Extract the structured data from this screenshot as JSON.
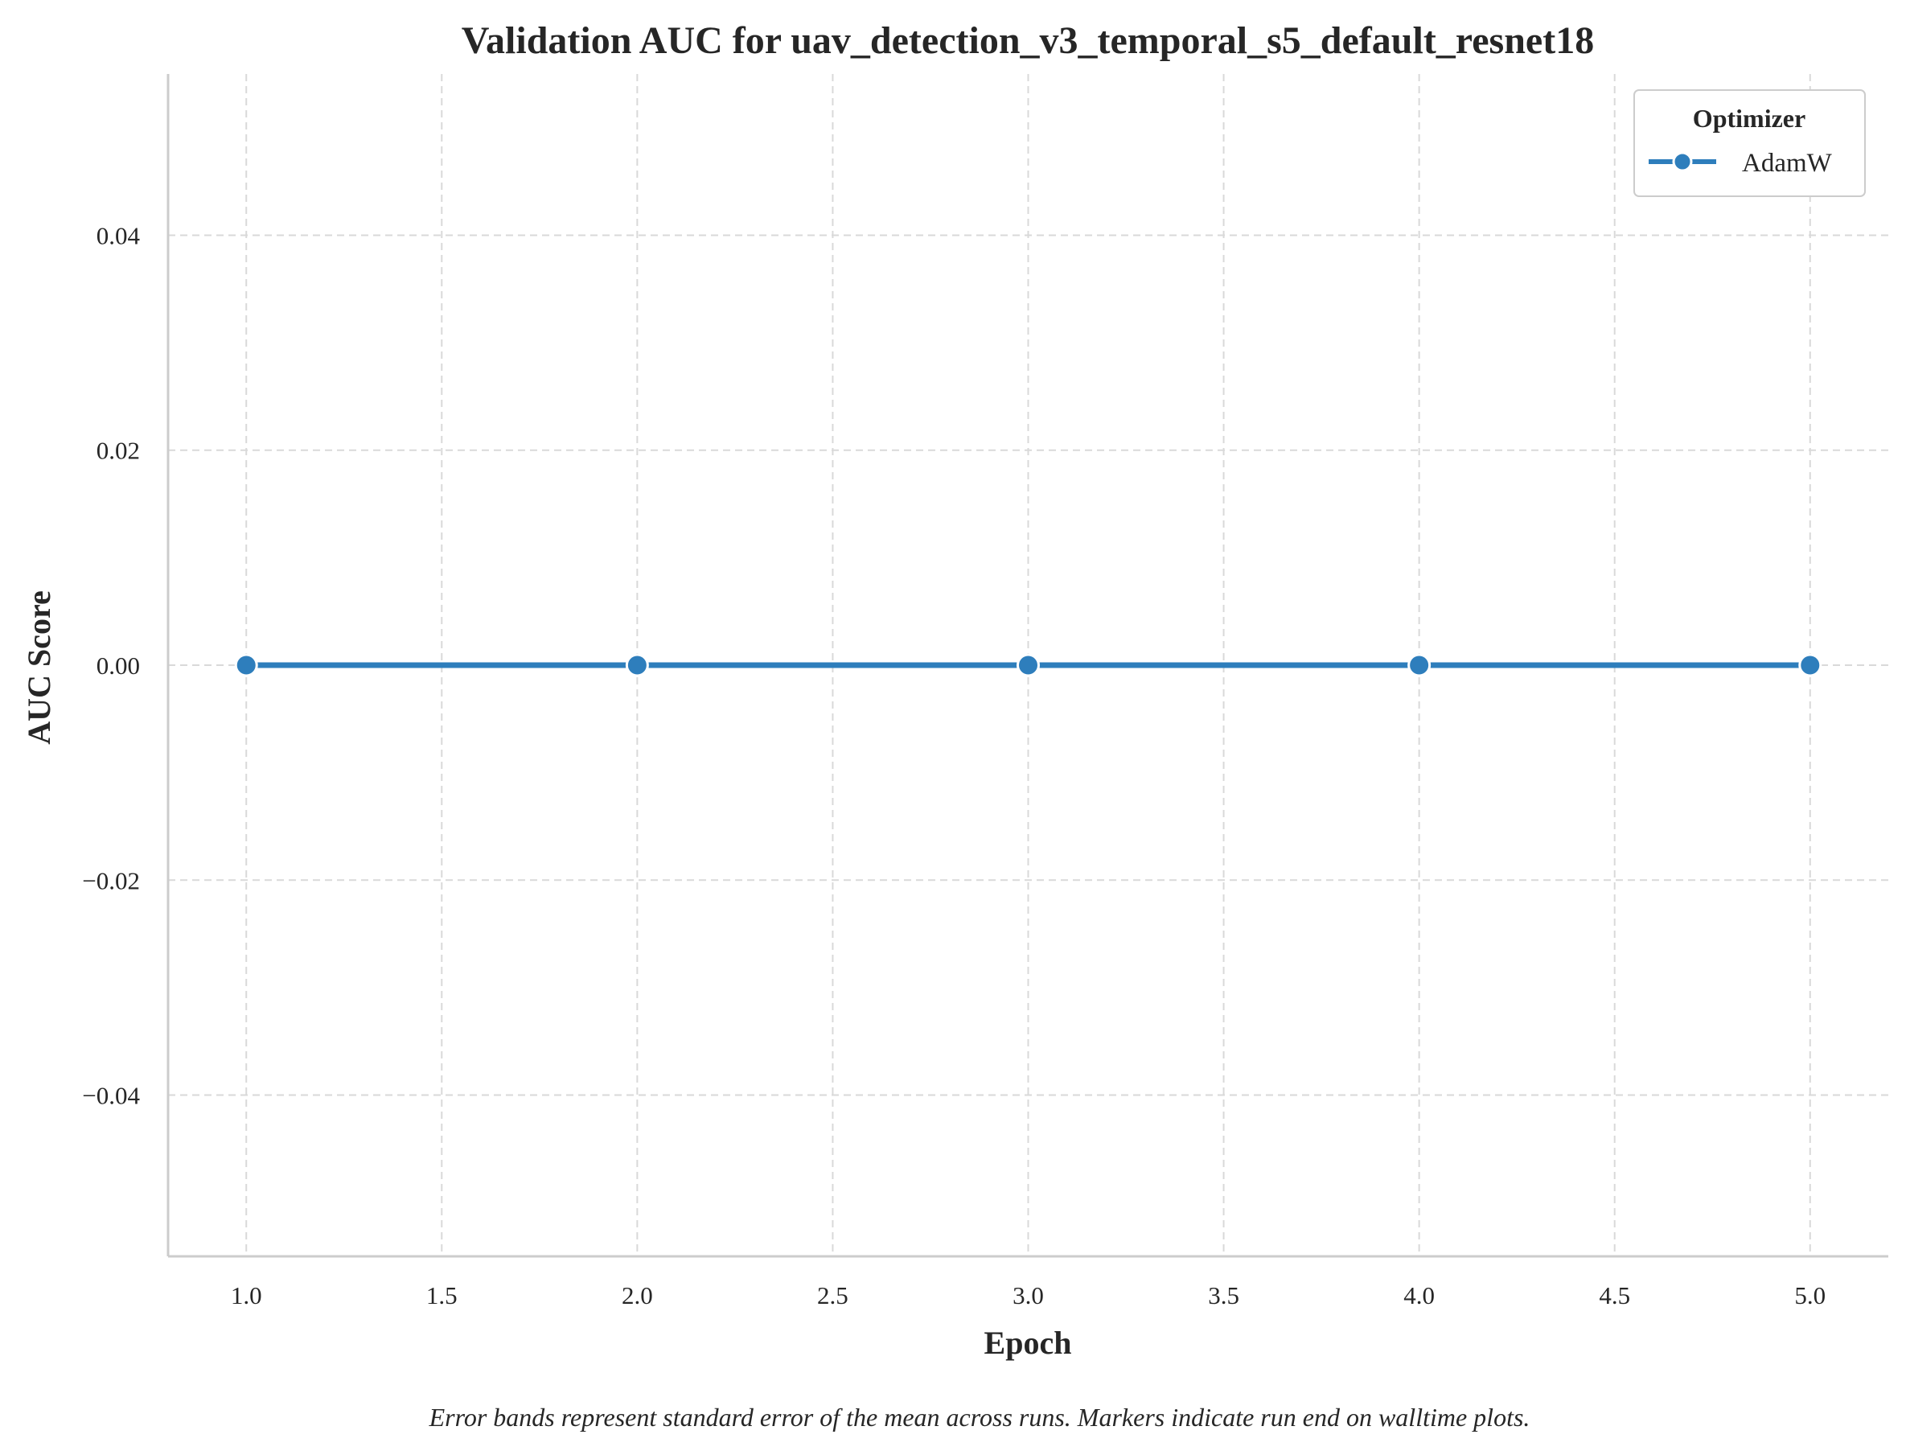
{
  "chart_data": {
    "type": "line",
    "title": "Validation AUC for uav_detection_v3_temporal_s5_default_resnet18",
    "xlabel": "Epoch",
    "ylabel": "AUC Score",
    "x": [
      1,
      2,
      3,
      4,
      5
    ],
    "xlim": [
      0.8,
      5.2
    ],
    "ylim": [
      -0.055,
      0.055
    ],
    "x_ticks": [
      1.0,
      1.5,
      2.0,
      2.5,
      3.0,
      3.5,
      4.0,
      4.5,
      5.0
    ],
    "x_tick_labels": [
      "1.0",
      "1.5",
      "2.0",
      "2.5",
      "3.0",
      "3.5",
      "4.0",
      "4.5",
      "5.0"
    ],
    "y_ticks": [
      -0.04,
      -0.02,
      0.0,
      0.02,
      0.04
    ],
    "y_tick_labels": [
      "−0.04",
      "−0.02",
      "0.00",
      "0.02",
      "0.04"
    ],
    "grid": true,
    "legend": {
      "title": "Optimizer",
      "placement": "top-right"
    },
    "series": [
      {
        "name": "AdamW",
        "color": "#2e7ebc",
        "values": [
          0,
          0,
          0,
          0,
          0
        ]
      }
    ],
    "footnote": "Error bands represent standard error of the mean across runs. Markers indicate run end on walltime plots."
  }
}
